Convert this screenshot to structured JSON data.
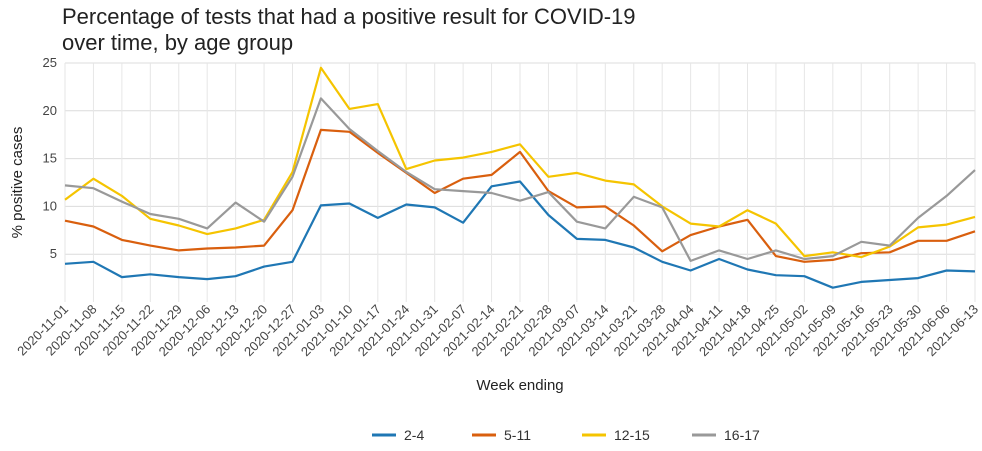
{
  "chart_data": {
    "type": "line",
    "title": "Percentage of tests that had a positive result for COVID-19 over time, by age group",
    "xlabel": "Week ending",
    "ylabel": "% positive cases",
    "ylim": [
      0,
      25
    ],
    "yticks": [
      5,
      10,
      15,
      20,
      25
    ],
    "grid": true,
    "legend_position": "bottom",
    "x": [
      "2020-11-01",
      "2020-11-08",
      "2020-11-15",
      "2020-11-22",
      "2020-11-29",
      "2020-12-06",
      "2020-12-13",
      "2020-12-20",
      "2020-12-27",
      "2021-01-03",
      "2021-01-10",
      "2021-01-17",
      "2021-01-24",
      "2021-01-31",
      "2021-02-07",
      "2021-02-14",
      "2021-02-21",
      "2021-02-28",
      "2021-03-07",
      "2021-03-14",
      "2021-03-21",
      "2021-03-28",
      "2021-04-04",
      "2021-04-11",
      "2021-04-18",
      "2021-04-25",
      "2021-05-02",
      "2021-05-09",
      "2021-05-16",
      "2021-05-23",
      "2021-05-30",
      "2021-06-06",
      "2021-06-13"
    ],
    "series": [
      {
        "name": "2-4",
        "color": "#1f77b4",
        "values": [
          4.0,
          4.2,
          2.6,
          2.9,
          2.6,
          2.4,
          2.7,
          3.7,
          4.2,
          10.1,
          10.3,
          8.8,
          10.2,
          9.9,
          8.3,
          12.1,
          12.6,
          9.1,
          6.6,
          6.5,
          5.7,
          4.2,
          3.3,
          4.5,
          3.4,
          2.8,
          2.7,
          1.5,
          2.1,
          2.3,
          2.5,
          3.3,
          3.2
        ]
      },
      {
        "name": "5-11",
        "color": "#d95f0e",
        "values": [
          8.5,
          7.9,
          6.5,
          5.9,
          5.4,
          5.6,
          5.7,
          5.9,
          9.6,
          18.0,
          17.8,
          15.6,
          13.5,
          11.4,
          12.9,
          13.3,
          15.7,
          11.6,
          9.9,
          10.0,
          8.0,
          5.3,
          7.0,
          7.9,
          8.6,
          4.8,
          4.2,
          4.4,
          5.1,
          5.2,
          6.4,
          6.4,
          7.4
        ]
      },
      {
        "name": "12-15",
        "color": "#f5c400",
        "values": [
          10.7,
          12.9,
          11.1,
          8.7,
          8.0,
          7.1,
          7.7,
          8.6,
          13.6,
          24.5,
          20.2,
          20.7,
          13.9,
          14.8,
          15.1,
          15.7,
          16.5,
          13.1,
          13.5,
          12.7,
          12.3,
          10.0,
          8.2,
          7.9,
          9.6,
          8.2,
          4.8,
          5.2,
          4.7,
          5.8,
          7.8,
          8.1,
          8.9
        ]
      },
      {
        "name": "16-17",
        "color": "#999999",
        "values": [
          12.2,
          11.9,
          10.5,
          9.2,
          8.7,
          7.7,
          10.4,
          8.4,
          13.1,
          21.3,
          18.1,
          15.8,
          13.6,
          11.8,
          11.6,
          11.4,
          10.6,
          11.5,
          8.4,
          7.7,
          11.0,
          9.9,
          4.3,
          5.4,
          4.5,
          5.4,
          4.5,
          4.8,
          6.3,
          5.9,
          8.8,
          11.1,
          13.8
        ]
      }
    ]
  }
}
